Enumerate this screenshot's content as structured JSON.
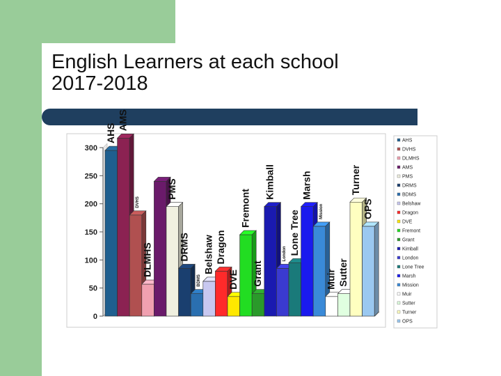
{
  "page": {
    "title_line1": "English Learners at each school",
    "title_line2": "2017-2018"
  },
  "chart_data": {
    "type": "bar",
    "title": "",
    "xlabel": "",
    "ylabel": "",
    "ylim": [
      0,
      300
    ],
    "yticks": [
      0,
      50,
      100,
      150,
      200,
      250,
      300
    ],
    "grid": false,
    "legend_placement": "right",
    "series": [
      {
        "name": "AHS",
        "value": 295,
        "color": "#1f5f8f",
        "label": "AHS",
        "label_size": 14
      },
      {
        "name": "AMS",
        "value": 317,
        "color": "#8b2252",
        "label": "AMS",
        "label_size": 14
      },
      {
        "name": "DVHS",
        "value": 180,
        "color": "#b05050",
        "label": "DVHS",
        "label_size": 6
      },
      {
        "name": "DLMHS",
        "value": 57,
        "color": "#f0a0b0",
        "label": "DLMHS",
        "label_size": 14
      },
      {
        "name": "AMS",
        "value": 240,
        "color": "#6a1a6a",
        "label": "",
        "label_size": 0
      },
      {
        "name": "PMS",
        "value": 195,
        "color": "#f0f0e0",
        "label": "PMS",
        "label_size": 14
      },
      {
        "name": "DRMS",
        "value": 85,
        "color": "#1a3f6f",
        "label": "DRMS",
        "label_size": 14
      },
      {
        "name": "BDMS",
        "value": 40,
        "color": "#2a6fb0",
        "label": "BDMS",
        "label_size": 6
      },
      {
        "name": "Belshaw",
        "value": 62,
        "color": "#c8c8f0",
        "label": "Belshaw",
        "label_size": 14
      },
      {
        "name": "Dragon",
        "value": 80,
        "color": "#ff2a2a",
        "label": "Dragon",
        "label_size": 14
      },
      {
        "name": "DVE",
        "value": 35,
        "color": "#ffe800",
        "label": "DVE",
        "label_size": 14
      },
      {
        "name": "Fremont",
        "value": 145,
        "color": "#22dd22",
        "label": "Fremont",
        "label_size": 14
      },
      {
        "name": "Grant",
        "value": 40,
        "color": "#2a9a2a",
        "label": "Grant",
        "label_size": 14
      },
      {
        "name": "Kimball",
        "value": 195,
        "color": "#1a1ab0",
        "label": "Kimball",
        "label_size": 14
      },
      {
        "name": "London",
        "value": 85,
        "color": "#3a3ad0",
        "label": "London",
        "label_size": 6
      },
      {
        "name": "Lone Tree",
        "value": 95,
        "color": "#1a7a7a",
        "label": "Lone Tree",
        "label_size": 14
      },
      {
        "name": "Marsh",
        "value": 195,
        "color": "#1a1aee",
        "label": "Marsh",
        "label_size": 14
      },
      {
        "name": "Mission",
        "value": 160,
        "color": "#3a8ad8",
        "label": "Mission",
        "label_size": 6
      },
      {
        "name": "Muir",
        "value": 35,
        "color": "#ffffff",
        "label": "Muir",
        "label_size": 14
      },
      {
        "name": "Sutter",
        "value": 40,
        "color": "#e0ffe0",
        "label": "Sutter",
        "label_size": 14
      },
      {
        "name": "Turner",
        "value": 203,
        "color": "#ffffc0",
        "label": "Turner",
        "label_size": 14
      },
      {
        "name": "OPS",
        "value": 160,
        "color": "#9ac8f0",
        "label": "OPS",
        "label_size": 14
      }
    ],
    "legend": [
      {
        "name": "AHS",
        "color": "#1f5f8f"
      },
      {
        "name": "DVHS",
        "color": "#b05050"
      },
      {
        "name": "DLMHS",
        "color": "#f0a0b0"
      },
      {
        "name": "AMS",
        "color": "#6a1a6a"
      },
      {
        "name": "PMS",
        "color": "#f0f0e0"
      },
      {
        "name": "DRMS",
        "color": "#1a3f6f"
      },
      {
        "name": "BDMS",
        "color": "#2a6fb0"
      },
      {
        "name": "Belshaw",
        "color": "#c8c8f0"
      },
      {
        "name": "Dragon",
        "color": "#ff2a2a"
      },
      {
        "name": "DVE",
        "color": "#ffe800"
      },
      {
        "name": "Fremont",
        "color": "#22dd22"
      },
      {
        "name": "Grant",
        "color": "#2a9a2a"
      },
      {
        "name": "Kimball",
        "color": "#1a1ab0"
      },
      {
        "name": "London",
        "color": "#3a3ad0"
      },
      {
        "name": "Lone Tree",
        "color": "#1a7a7a"
      },
      {
        "name": "Marsh",
        "color": "#1a1aee"
      },
      {
        "name": "Mission",
        "color": "#3a8ad8"
      },
      {
        "name": "Muir",
        "color": "#ffffff"
      },
      {
        "name": "Sutter",
        "color": "#e0ffe0"
      },
      {
        "name": "Turner",
        "color": "#ffffc0"
      },
      {
        "name": "OPS",
        "color": "#9ac8f0"
      }
    ]
  }
}
